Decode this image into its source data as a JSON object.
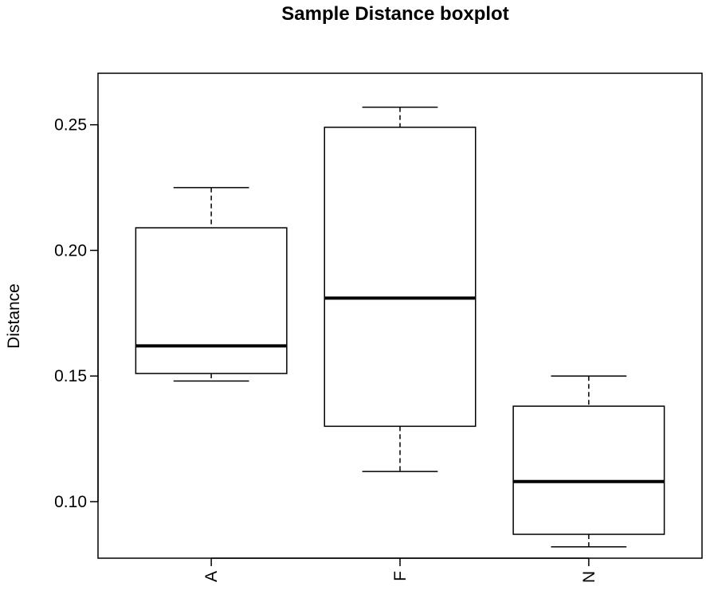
{
  "chart_data": {
    "type": "boxplot",
    "title": "Sample Distance boxplot",
    "xlabel": "",
    "ylabel": "Distance",
    "categories": [
      "A",
      "F",
      "N"
    ],
    "boxes": [
      {
        "category": "A",
        "whisker_low": 0.148,
        "q1": 0.151,
        "median": 0.162,
        "q3": 0.209,
        "whisker_high": 0.225
      },
      {
        "category": "F",
        "whisker_low": 0.112,
        "q1": 0.13,
        "median": 0.181,
        "q3": 0.249,
        "whisker_high": 0.257
      },
      {
        "category": "N",
        "whisker_low": 0.082,
        "q1": 0.087,
        "median": 0.108,
        "q3": 0.138,
        "whisker_high": 0.15
      }
    ],
    "yticks": [
      0.1,
      0.15,
      0.2,
      0.25
    ],
    "ytick_labels": [
      "0.10",
      "0.15",
      "0.20",
      "0.25"
    ],
    "ylim": [
      0.0775,
      0.2705
    ],
    "grid": false,
    "legend": "none",
    "colors": {
      "box_fill": "#ffffff",
      "stroke": "#000000"
    }
  }
}
